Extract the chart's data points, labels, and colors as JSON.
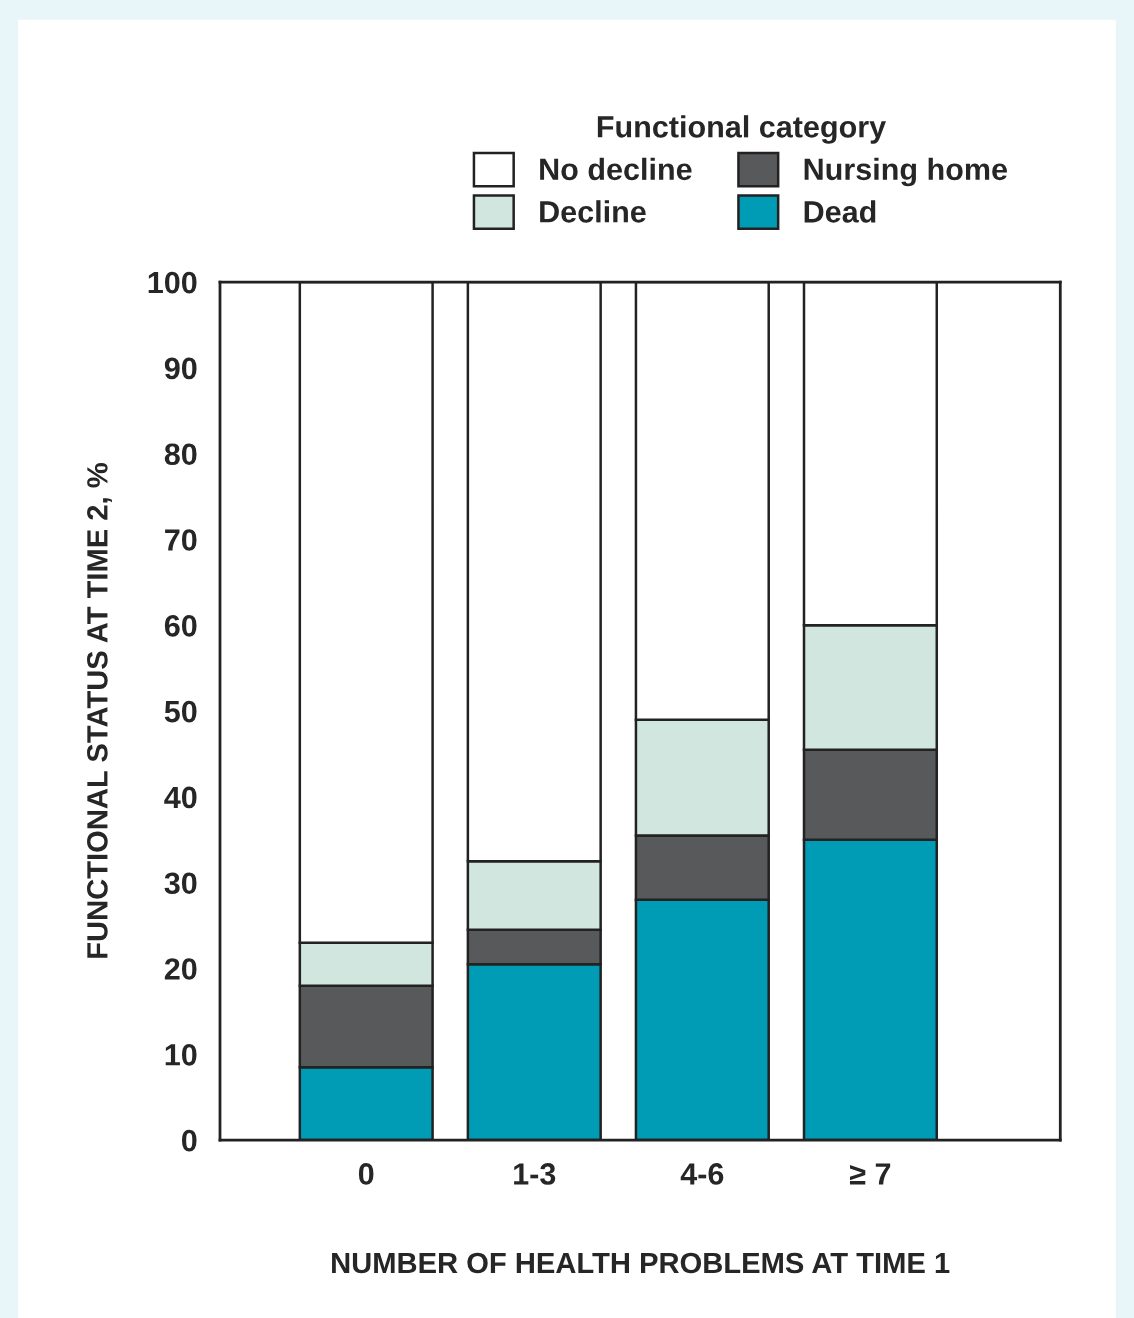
{
  "chart_data": {
    "type": "bar",
    "stacked": true,
    "legend_title": "Functional category",
    "legend": "top",
    "xlabel": "NUMBER OF HEALTH PROBLEMS AT TIME 1",
    "ylabel": "FUNCTIONAL STATUS AT TIME 2, %",
    "categories": [
      "0",
      "1-3",
      "4-6",
      "≥ 7"
    ],
    "series": [
      {
        "name": "Dead",
        "color": "#009bb4",
        "values": [
          8.5,
          20.5,
          28,
          35
        ]
      },
      {
        "name": "Nursing home",
        "color": "#58595b",
        "values": [
          9.5,
          4,
          7.5,
          10.5
        ]
      },
      {
        "name": "Decline",
        "color": "#d2e6e0",
        "values": [
          5,
          8,
          13.5,
          14.5
        ]
      },
      {
        "name": "No decline",
        "color": "#ffffff",
        "values": [
          77,
          67.5,
          51,
          40
        ]
      }
    ],
    "ylim": [
      0,
      100
    ],
    "yticks": [
      0,
      10,
      20,
      30,
      40,
      50,
      60,
      70,
      80,
      90,
      100
    ],
    "grid": false
  }
}
